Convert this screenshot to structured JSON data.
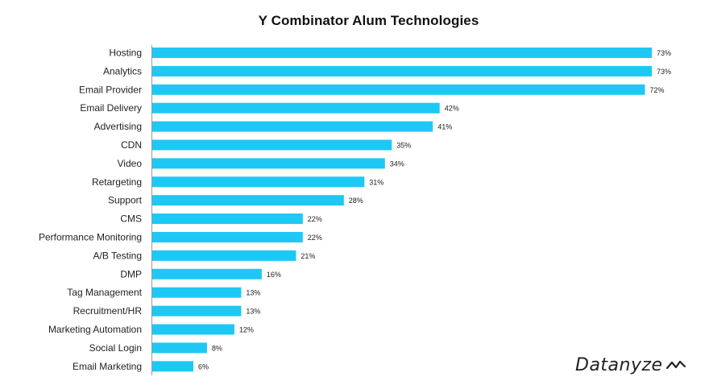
{
  "chart_data": {
    "type": "bar",
    "orientation": "horizontal",
    "title": "Y Combinator Alum Technologies",
    "categories": [
      "Hosting",
      "Analytics",
      "Email Provider",
      "Email Delivery",
      "Advertising",
      "CDN",
      "Video",
      "Retargeting",
      "Support",
      "CMS",
      "Performance Monitoring",
      "A/B Testing",
      "DMP",
      "Tag Management",
      "Recruitment/HR",
      "Marketing Automation",
      "Social Login",
      "Email Marketing"
    ],
    "values": [
      73,
      73,
      72,
      42,
      41,
      35,
      34,
      31,
      28,
      22,
      22,
      21,
      16,
      13,
      13,
      12,
      8,
      6
    ],
    "value_labels": [
      "73%",
      "73%",
      "72%",
      "42%",
      "41%",
      "35%",
      "34%",
      "31%",
      "28%",
      "22%",
      "22%",
      "21%",
      "16%",
      "13%",
      "13%",
      "12%",
      "8%",
      "6%"
    ],
    "xlim": [
      0,
      73
    ],
    "grid": false,
    "bar_color": "#1ec8f5"
  },
  "brand": {
    "name": "Datanyze",
    "icon": "wave-icon"
  }
}
